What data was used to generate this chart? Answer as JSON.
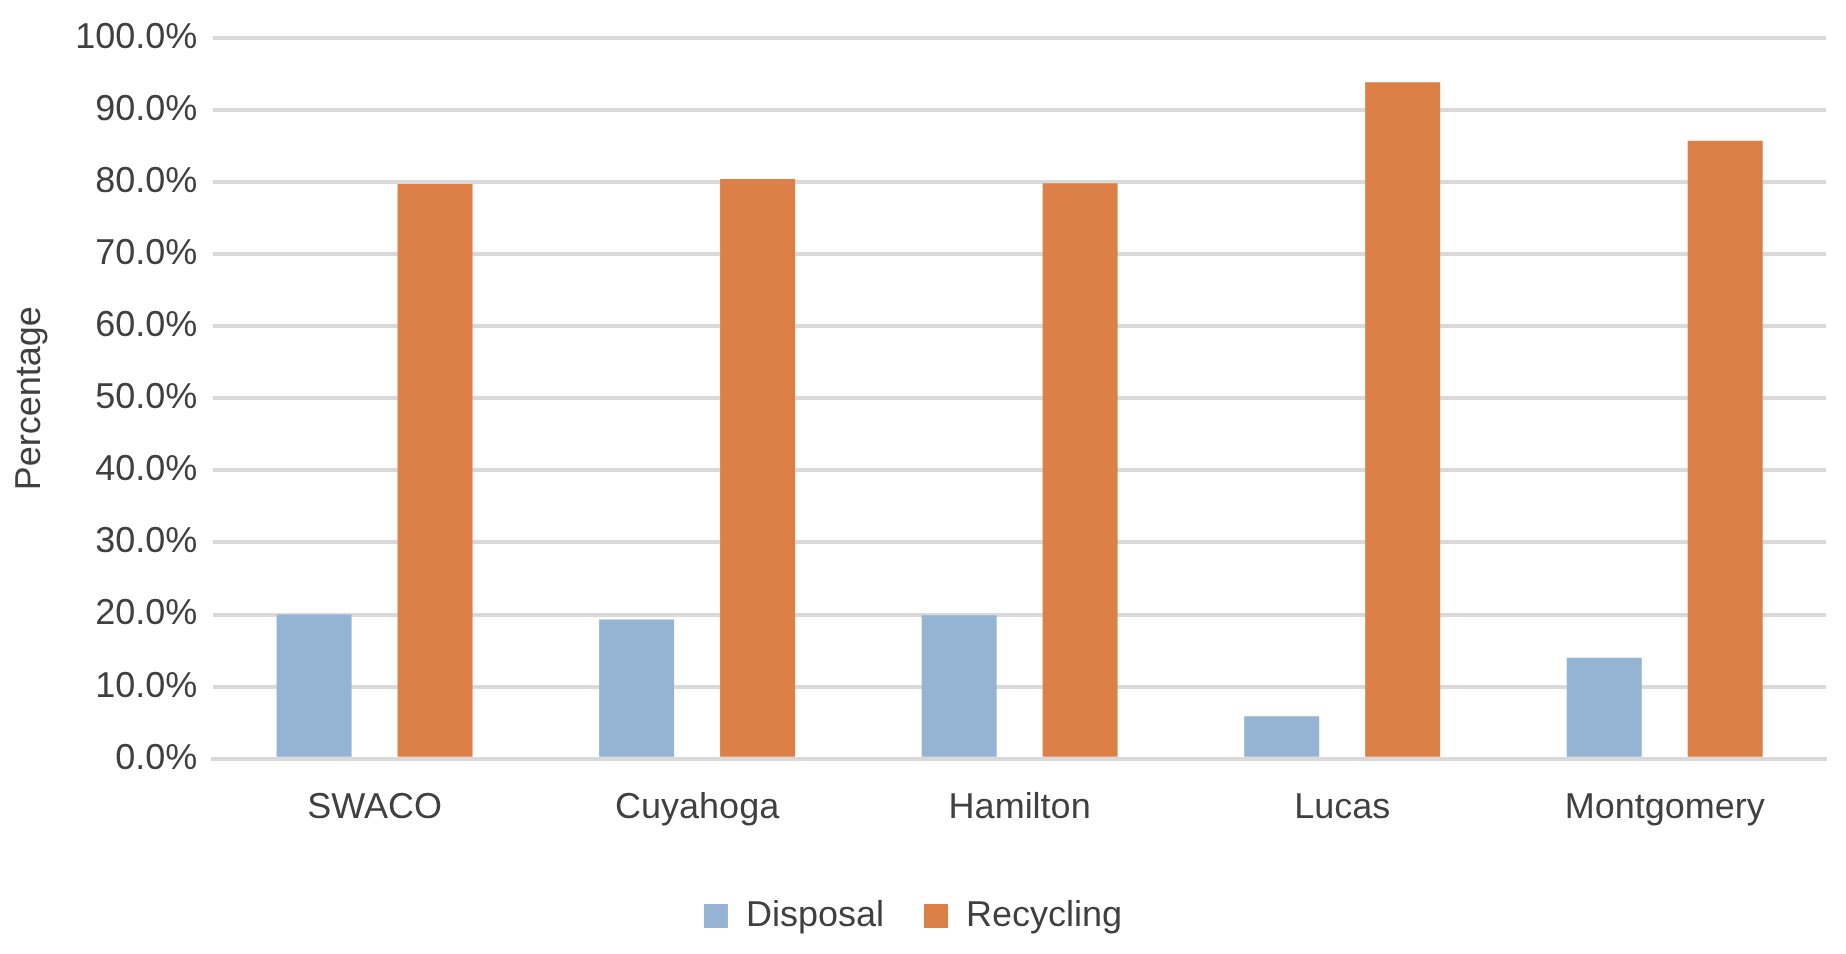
{
  "chart_data": {
    "type": "bar",
    "ylabel": "Percentage",
    "categories": [
      "SWACO",
      "Cuyahoga",
      "Hamilton",
      "Lucas",
      "Montgomery"
    ],
    "series": [
      {
        "name": "Disposal",
        "color": "#95b3d3",
        "values": [
          20.0,
          19.3,
          19.9,
          5.9,
          14.0
        ]
      },
      {
        "name": "Recycling",
        "color": "#dd8047",
        "values": [
          79.7,
          80.4,
          79.8,
          93.8,
          85.7
        ]
      }
    ],
    "ylim": [
      0,
      100
    ],
    "yticks": [
      {
        "value": 0,
        "label": "0.0%"
      },
      {
        "value": 10,
        "label": "10.0%"
      },
      {
        "value": 20,
        "label": "20.0%"
      },
      {
        "value": 30,
        "label": "30.0%"
      },
      {
        "value": 40,
        "label": "40.0%"
      },
      {
        "value": 50,
        "label": "50.0%"
      },
      {
        "value": 60,
        "label": "60.0%"
      },
      {
        "value": 70,
        "label": "70.0%"
      },
      {
        "value": 80,
        "label": "80.0%"
      },
      {
        "value": 90,
        "label": "90.0%"
      },
      {
        "value": 100,
        "label": "100.0%"
      }
    ],
    "grid": "y",
    "legend": "bottom"
  }
}
